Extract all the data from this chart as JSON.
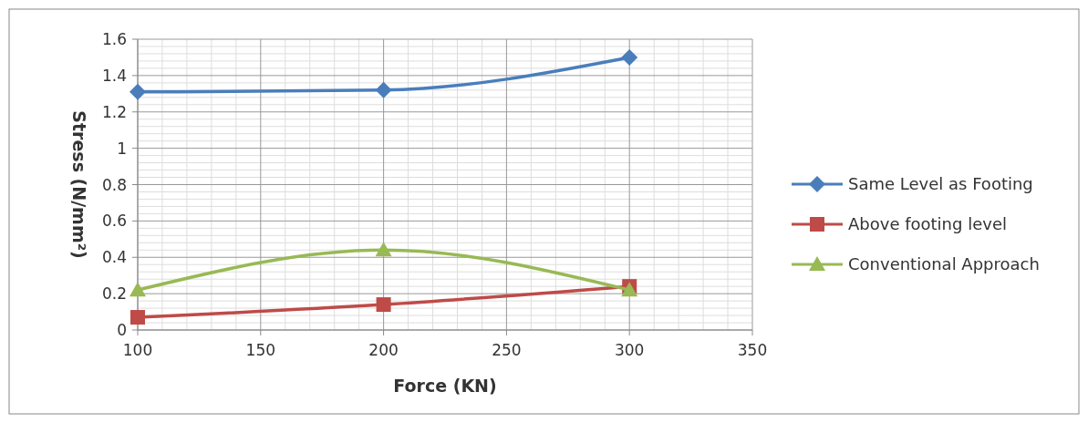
{
  "chart_data": {
    "type": "line",
    "xlabel": "Force (KN)",
    "ylabel": "Stress (N/mm²)",
    "x": [
      100,
      200,
      300
    ],
    "series": [
      {
        "name": "Same Level as Footing",
        "color": "#4a7ebb",
        "marker": "diamond",
        "values": [
          1.31,
          1.32,
          1.5
        ]
      },
      {
        "name": "Above footing level",
        "color": "#be4b48",
        "marker": "square",
        "values": [
          0.07,
          0.14,
          0.24
        ]
      },
      {
        "name": "Conventional Approach",
        "color": "#98b954",
        "marker": "triangle",
        "values": [
          0.22,
          0.44,
          0.22
        ]
      }
    ],
    "xlim": [
      100,
      350
    ],
    "xticks": [
      100,
      150,
      200,
      250,
      300,
      350
    ],
    "ylim": [
      0,
      1.6
    ],
    "yticks": [
      0,
      0.2,
      0.4,
      0.6,
      0.8,
      1,
      1.2,
      1.4,
      1.6
    ],
    "grid": true,
    "legend": "right"
  }
}
